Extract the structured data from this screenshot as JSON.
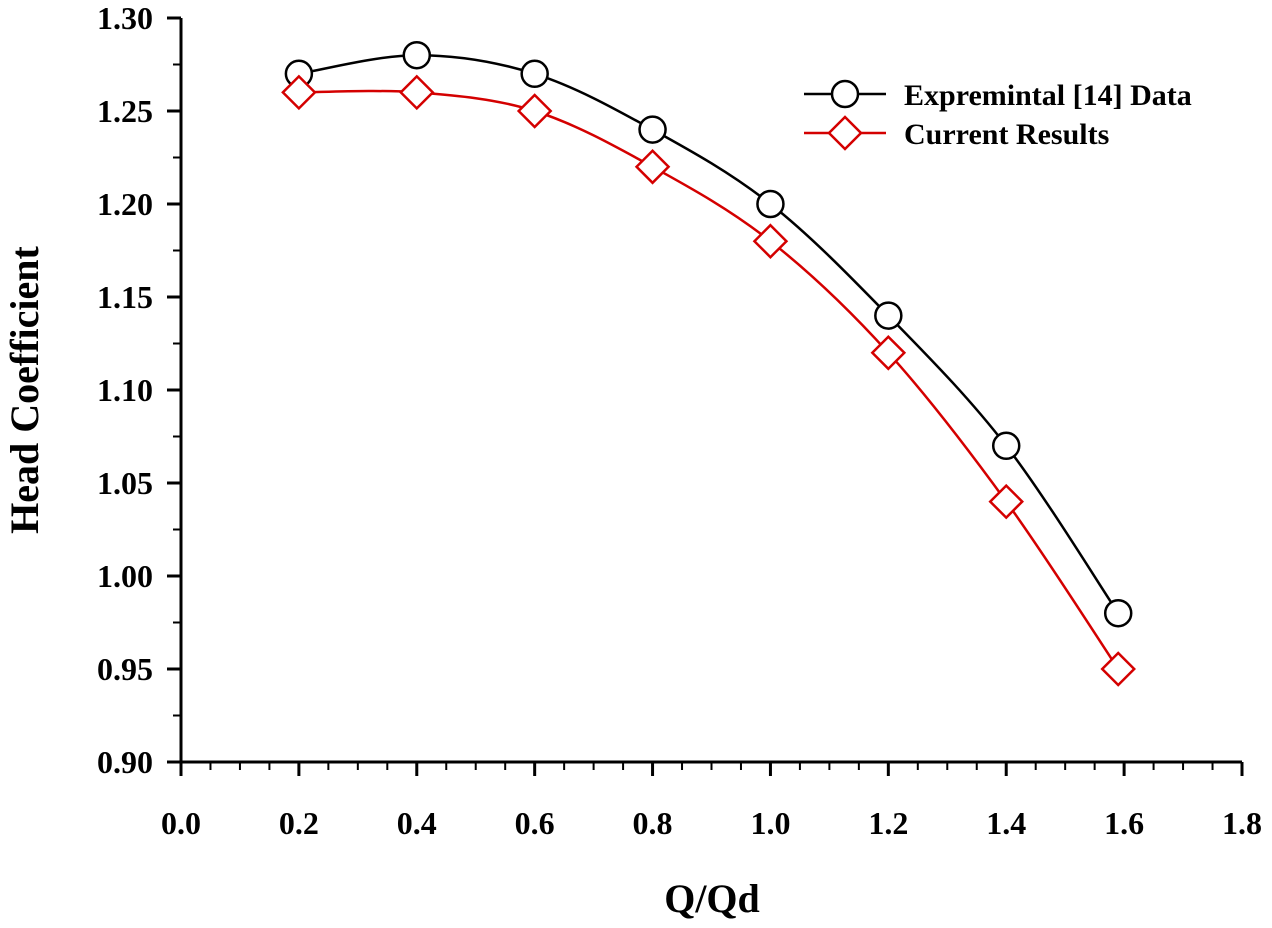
{
  "chart_data": {
    "type": "line",
    "title": "",
    "xlabel": "Q/Qd",
    "ylabel": "Head Coefficient",
    "xlim": [
      0.0,
      1.8
    ],
    "ylim": [
      0.9,
      1.3
    ],
    "xticks": [
      "0.0",
      "0.2",
      "0.4",
      "0.6",
      "0.8",
      "1.0",
      "1.2",
      "1.4",
      "1.6",
      "1.8"
    ],
    "yticks": [
      "0.90",
      "0.95",
      "1.00",
      "1.05",
      "1.10",
      "1.15",
      "1.20",
      "1.25",
      "1.30"
    ],
    "grid": false,
    "legend_position": "top-right",
    "series": [
      {
        "name": "Expremintal [14] Data",
        "color": "#000000",
        "marker": "circle",
        "x": [
          0.2,
          0.4,
          0.6,
          0.8,
          1.0,
          1.2,
          1.4,
          1.59
        ],
        "y": [
          1.27,
          1.28,
          1.27,
          1.24,
          1.2,
          1.14,
          1.07,
          0.98
        ]
      },
      {
        "name": "Current Results",
        "color": "#d40000",
        "marker": "diamond",
        "x": [
          0.2,
          0.4,
          0.6,
          0.8,
          1.0,
          1.2,
          1.4,
          1.59
        ],
        "y": [
          1.26,
          1.26,
          1.25,
          1.22,
          1.18,
          1.12,
          1.04,
          0.95
        ]
      }
    ]
  }
}
